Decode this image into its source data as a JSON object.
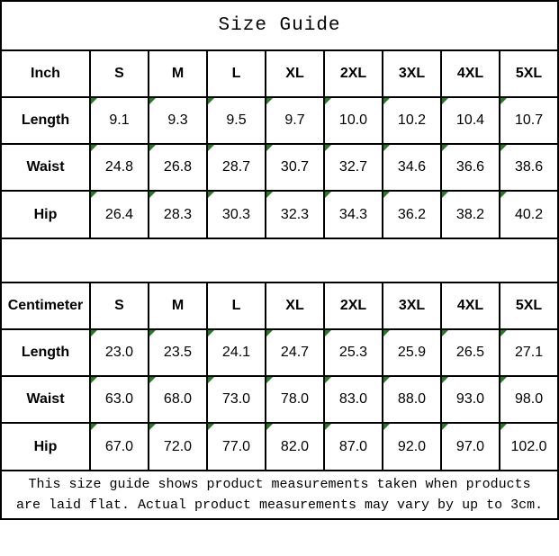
{
  "title": "Size Guide",
  "colors": {
    "border": "#000000",
    "background": "#ffffff",
    "text": "#000000",
    "flag_triangle_green": "#208020"
  },
  "tables": [
    {
      "unit_label": "Inch",
      "sizes": [
        "S",
        "M",
        "L",
        "XL",
        "2XL",
        "3XL",
        "4XL",
        "5XL"
      ],
      "rows": [
        {
          "label": "Length",
          "values": [
            "9.1",
            "9.3",
            "9.5",
            "9.7",
            "10.0",
            "10.2",
            "10.4",
            "10.7"
          ]
        },
        {
          "label": "Waist",
          "values": [
            "24.8",
            "26.8",
            "28.7",
            "30.7",
            "32.7",
            "34.6",
            "36.6",
            "38.6"
          ]
        },
        {
          "label": "Hip",
          "values": [
            "26.4",
            "28.3",
            "30.3",
            "32.3",
            "34.3",
            "36.2",
            "38.2",
            "40.2"
          ]
        }
      ]
    },
    {
      "unit_label": "Centimeter",
      "sizes": [
        "S",
        "M",
        "L",
        "XL",
        "2XL",
        "3XL",
        "4XL",
        "5XL"
      ],
      "rows": [
        {
          "label": "Length",
          "values": [
            "23.0",
            "23.5",
            "24.1",
            "24.7",
            "25.3",
            "25.9",
            "26.5",
            "27.1"
          ]
        },
        {
          "label": "Waist",
          "values": [
            "63.0",
            "68.0",
            "73.0",
            "78.0",
            "83.0",
            "88.0",
            "93.0",
            "98.0"
          ]
        },
        {
          "label": "Hip",
          "values": [
            "67.0",
            "72.0",
            "77.0",
            "82.0",
            "87.0",
            "92.0",
            "97.0",
            "102.0"
          ]
        }
      ]
    }
  ],
  "footnote": {
    "line1": "This size guide shows product measurements taken when products",
    "line2": "are laid flat. Actual product measurements may vary by up to 3cm."
  }
}
